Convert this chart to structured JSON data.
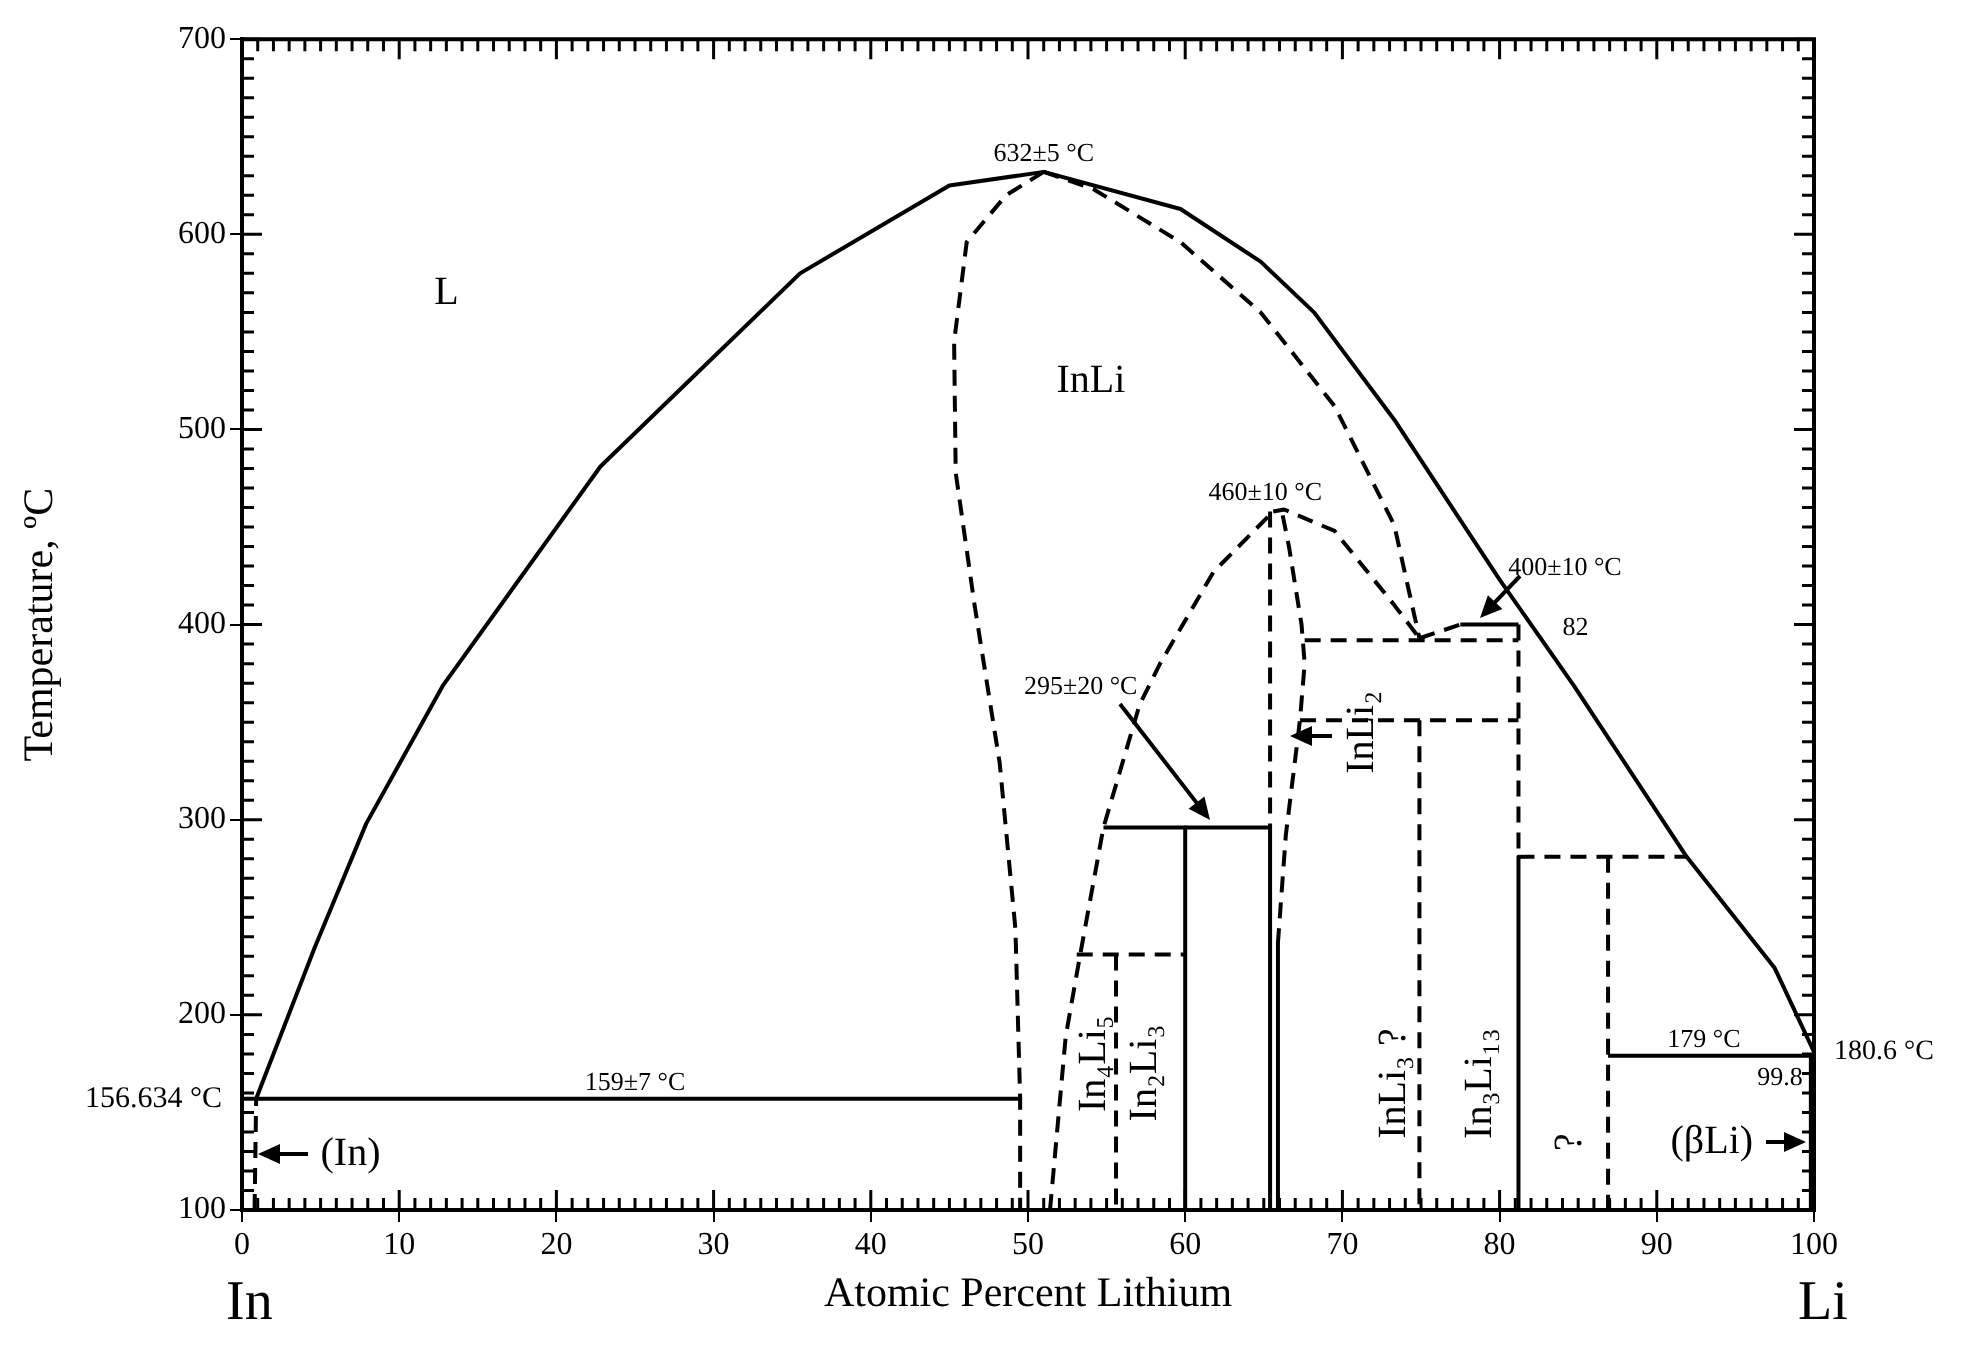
{
  "chart_data": {
    "type": "line",
    "xlabel": "Atomic Percent Lithium",
    "ylabel": "Temperature, ºC",
    "xlim": [
      0,
      100
    ],
    "ylim": [
      100,
      700
    ],
    "xticks": [
      0,
      10,
      20,
      30,
      40,
      50,
      60,
      70,
      80,
      90,
      100
    ],
    "yticks": [
      100,
      200,
      300,
      400,
      500,
      600,
      700
    ],
    "grid": false,
    "legend": false,
    "marker": "none",
    "series": [
      {
        "color": "#000000",
        "line_style": "solid",
        "x": [
          0.9,
          4.6,
          7.9,
          12.8,
          22.8,
          35.5,
          45,
          51,
          59.7,
          64.8,
          68.2,
          73.3,
          80,
          84.7,
          91.9,
          97.5,
          100
        ],
        "values": [
          157,
          234,
          298,
          369,
          481,
          580,
          625,
          632,
          613,
          586,
          560,
          505,
          423,
          369,
          281,
          224,
          181
        ]
      },
      {
        "color": "#000000",
        "line_style": "solid",
        "x": [
          0,
          49.5
        ],
        "values": [
          157,
          157
        ]
      },
      {
        "color": "#000000",
        "line_style": "dashed",
        "x": [
          0.8,
          0.9
        ],
        "values": [
          100,
          157
        ]
      },
      {
        "color": "#000000",
        "line_style": "dashed",
        "x": [
          51,
          48.6,
          46.1,
          45.3,
          45.4,
          46.6,
          48.2,
          49.2,
          49.5,
          49.5
        ],
        "values": [
          632,
          620,
          596,
          545,
          478,
          410,
          329,
          244,
          157,
          100
        ]
      },
      {
        "color": "#000000",
        "line_style": "dashed",
        "x": [
          51,
          54.2,
          59.7,
          64.8,
          69.5,
          73.3,
          74.9
        ],
        "values": [
          632,
          623,
          596,
          560,
          512,
          451,
          393
        ]
      },
      {
        "color": "#000000",
        "line_style": "dashed",
        "x": [
          74.9,
          77.5
        ],
        "values": [
          393,
          400
        ]
      },
      {
        "color": "#000000",
        "line_style": "solid",
        "x": [
          77.5,
          81.2
        ],
        "values": [
          400,
          400
        ]
      },
      {
        "color": "#000000",
        "line_style": "dashed",
        "x": [
          67.6,
          81.2
        ],
        "values": [
          392,
          392
        ]
      },
      {
        "color": "#000000",
        "line_style": "dashed",
        "x": [
          67.3,
          81.2
        ],
        "values": [
          351,
          351
        ]
      },
      {
        "color": "#000000",
        "line_style": "dashed",
        "x": [
          81.2,
          81.2
        ],
        "values": [
          400,
          281
        ]
      },
      {
        "color": "#000000",
        "line_style": "solid",
        "x": [
          81.2,
          81.2
        ],
        "values": [
          281,
          100
        ]
      },
      {
        "color": "#000000",
        "line_style": "dashed",
        "x": [
          74.9,
          74.9
        ],
        "values": [
          351,
          100
        ]
      },
      {
        "color": "#000000",
        "line_style": "dashed",
        "x": [
          51.4,
          52.4,
          53.3,
          54.8,
          57.1,
          58.4,
          61.8,
          65.6
        ],
        "values": [
          100,
          189,
          230,
          296,
          359,
          380,
          427,
          458
        ]
      },
      {
        "color": "#000000",
        "line_style": "dashed",
        "x": [
          65.6,
          66.3,
          69.5,
          73.3,
          74.9
        ],
        "values": [
          458,
          459,
          448,
          410,
          393
        ]
      },
      {
        "color": "#000000",
        "line_style": "dashed",
        "x": [
          65.4,
          65.4
        ],
        "values": [
          458,
          296
        ]
      },
      {
        "color": "#000000",
        "line_style": "solid",
        "x": [
          65.4,
          65.4
        ],
        "values": [
          296,
          100
        ]
      },
      {
        "color": "#000000",
        "line_style": "dashed",
        "x": [
          66.2,
          66.6,
          67.4,
          67.6,
          67.3,
          66.4,
          65.9
        ],
        "values": [
          456,
          440,
          400,
          380,
          351,
          292,
          237
        ]
      },
      {
        "color": "#000000",
        "line_style": "solid",
        "x": [
          65.9,
          65.9
        ],
        "values": [
          237,
          100
        ]
      },
      {
        "color": "#000000",
        "line_style": "solid",
        "x": [
          54.8,
          65.4
        ],
        "values": [
          296,
          296
        ]
      },
      {
        "color": "#000000",
        "line_style": "solid",
        "x": [
          60,
          60
        ],
        "values": [
          296,
          100
        ]
      },
      {
        "color": "#000000",
        "line_style": "dashed",
        "x": [
          53.1,
          60
        ],
        "values": [
          231,
          231
        ]
      },
      {
        "color": "#000000",
        "line_style": "dashed",
        "x": [
          55.6,
          55.6
        ],
        "values": [
          231,
          100
        ]
      },
      {
        "color": "#000000",
        "line_style": "dashed",
        "x": [
          81.2,
          91.9
        ],
        "values": [
          281,
          281
        ]
      },
      {
        "color": "#000000",
        "line_style": "dashed",
        "x": [
          86.9,
          86.9
        ],
        "values": [
          281,
          100
        ]
      },
      {
        "color": "#000000",
        "line_style": "solid",
        "x": [
          86.9,
          100
        ],
        "values": [
          179,
          179
        ]
      },
      {
        "color": "#000000",
        "line_style": "solid",
        "x": [
          99.8,
          99.8
        ],
        "values": [
          179,
          100
        ]
      }
    ],
    "annotations": [
      {
        "text": "632±5 °C",
        "x": 51,
        "y": 632
      },
      {
        "text": "460±10 °C",
        "x": 65.6,
        "y": 458
      },
      {
        "text": "400±10 °C",
        "x": 78,
        "y": 400
      },
      {
        "text": "82",
        "x": 81.2,
        "y": 400
      },
      {
        "text": "159±7 °C",
        "x": 25,
        "y": 157
      },
      {
        "text": "179 °C",
        "x": 93,
        "y": 179
      },
      {
        "text": "180.6 °C",
        "x": 100,
        "y": 181
      },
      {
        "text": "156.634 °C",
        "x": 0,
        "y": 157
      },
      {
        "text": "99.8",
        "x": 99.8,
        "y": 179
      },
      "295±20 °C",
      "L",
      "InLi",
      "InLi₂",
      "In₄Li₅",
      "In₂Li₃",
      "InLi₃ ?",
      "In₃Li₁₃",
      "?",
      "(βLi)",
      "(In)",
      "In",
      "Li"
    ]
  }
}
